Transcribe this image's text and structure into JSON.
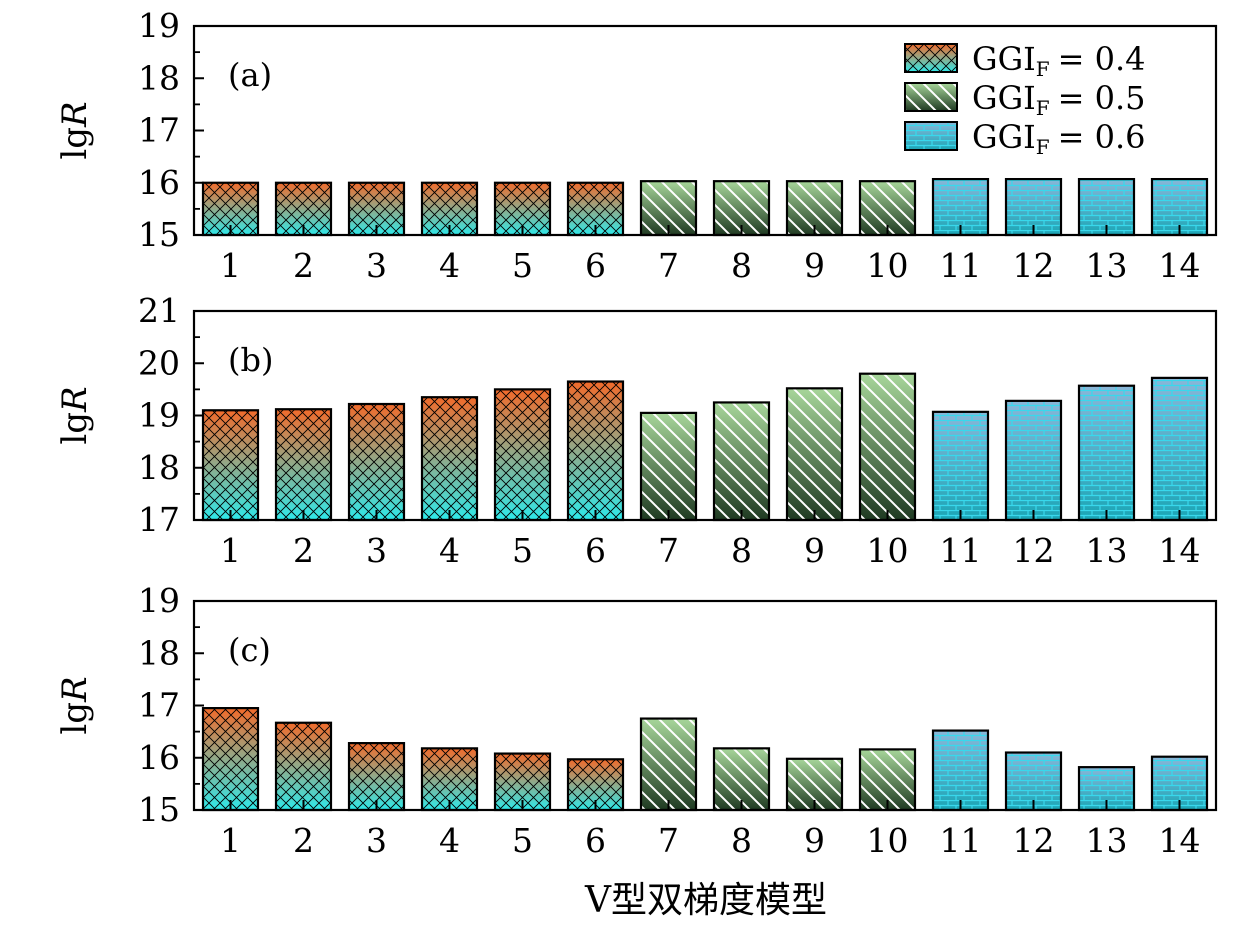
{
  "chart_data": {
    "type": "bar",
    "xlabel": "V型双梯度模型",
    "categories": [
      "1",
      "2",
      "3",
      "4",
      "5",
      "6",
      "7",
      "8",
      "9",
      "10",
      "11",
      "12",
      "13",
      "14"
    ],
    "legend": {
      "entries": [
        {
          "label": "GGI",
          "subscript": "F",
          "value": "= 0.4",
          "group": "A"
        },
        {
          "label": "GGI",
          "subscript": "F",
          "value": "= 0.5",
          "group": "B"
        },
        {
          "label": "GGI",
          "subscript": "F",
          "value": "= 0.6",
          "group": "C"
        }
      ],
      "position": "top-right"
    },
    "bar_groups": [
      "A",
      "A",
      "A",
      "A",
      "A",
      "A",
      "B",
      "B",
      "B",
      "B",
      "C",
      "C",
      "C",
      "C"
    ],
    "colors": {
      "A_top": "#f26a2a",
      "A_bottom": "#2ee9ea",
      "B_top": "#a7d69a",
      "B_bottom": "#1f3a22",
      "C_top": "#8ab6d8",
      "C_bottom": "#1aa6b6",
      "outline": "#000000"
    },
    "panels": [
      {
        "tag": "(a)",
        "ylabel": "lgR",
        "ylim": [
          15,
          19
        ],
        "yticks": [
          "15",
          "16",
          "17",
          "18",
          "19"
        ],
        "values": [
          16.0,
          16.0,
          16.0,
          16.0,
          16.0,
          16.0,
          16.03,
          16.03,
          16.03,
          16.03,
          16.07,
          16.07,
          16.07,
          16.07
        ],
        "show_legend": true
      },
      {
        "tag": "(b)",
        "ylabel": "lgR",
        "ylim": [
          17,
          21
        ],
        "yticks": [
          "17",
          "18",
          "19",
          "20",
          "21"
        ],
        "values": [
          19.1,
          19.12,
          19.22,
          19.35,
          19.5,
          19.65,
          19.05,
          19.25,
          19.52,
          19.8,
          19.07,
          19.28,
          19.57,
          19.72
        ],
        "show_legend": false
      },
      {
        "tag": "(c)",
        "ylabel": "lgR",
        "ylim": [
          15,
          19
        ],
        "yticks": [
          "15",
          "16",
          "17",
          "18",
          "19"
        ],
        "values": [
          16.95,
          16.67,
          16.28,
          16.18,
          16.08,
          15.97,
          16.75,
          16.18,
          15.98,
          16.16,
          16.52,
          16.1,
          15.82,
          16.02
        ],
        "show_legend": false
      }
    ]
  }
}
